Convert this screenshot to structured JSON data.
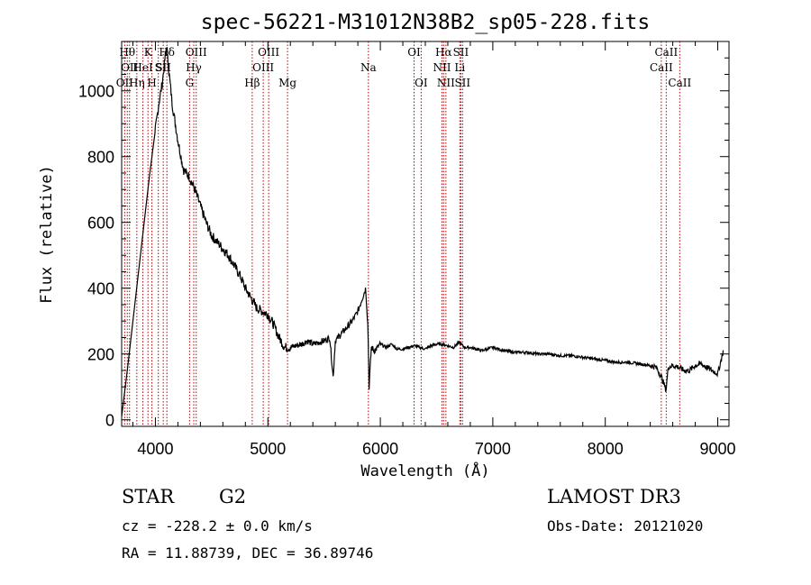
{
  "chart_data": {
    "type": "line",
    "title": "spec-56221-M31012N38B2_sp05-228.fits",
    "xlabel": "Wavelength (Å)",
    "ylabel": "Flux (relative)",
    "xlim": [
      3700,
      9100
    ],
    "ylim": [
      -20,
      1150
    ],
    "xticks": [
      4000,
      5000,
      6000,
      7000,
      8000,
      9000
    ],
    "yticks": [
      0,
      200,
      400,
      600,
      800,
      1000
    ],
    "series": [
      {
        "name": "flux",
        "color": "#000000",
        "x": [
          3700,
          3750,
          3800,
          3850,
          3900,
          3950,
          4000,
          4030,
          4060,
          4080,
          4100,
          4110,
          4120,
          4150,
          4200,
          4250,
          4300,
          4350,
          4400,
          4450,
          4500,
          4550,
          4600,
          4650,
          4700,
          4750,
          4800,
          4850,
          4900,
          4950,
          5000,
          5050,
          5100,
          5150,
          5200,
          5250,
          5300,
          5350,
          5400,
          5450,
          5500,
          5550,
          5580,
          5600,
          5650,
          5700,
          5750,
          5800,
          5850,
          5870,
          5890,
          5900,
          5920,
          5950,
          6000,
          6050,
          6100,
          6150,
          6200,
          6250,
          6300,
          6350,
          6400,
          6450,
          6500,
          6550,
          6600,
          6650,
          6700,
          6750,
          6800,
          6850,
          6900,
          6950,
          7000,
          7100,
          7200,
          7300,
          7400,
          7500,
          7600,
          7700,
          7800,
          7900,
          8000,
          8100,
          8200,
          8300,
          8400,
          8450,
          8500,
          8540,
          8560,
          8600,
          8650,
          8700,
          8750,
          8800,
          8850,
          8900,
          8950,
          9000,
          9050
        ],
        "y": [
          10,
          150,
          300,
          450,
          600,
          750,
          880,
          960,
          1020,
          1080,
          1140,
          1100,
          1060,
          960,
          850,
          760,
          740,
          700,
          650,
          600,
          560,
          540,
          520,
          500,
          470,
          440,
          400,
          370,
          340,
          330,
          320,
          290,
          250,
          220,
          220,
          225,
          230,
          240,
          230,
          235,
          240,
          250,
          130,
          240,
          260,
          280,
          300,
          330,
          380,
          400,
          280,
          100,
          220,
          210,
          230,
          220,
          230,
          215,
          215,
          220,
          225,
          220,
          215,
          225,
          230,
          230,
          225,
          220,
          235,
          220,
          220,
          215,
          210,
          215,
          220,
          210,
          205,
          205,
          200,
          200,
          195,
          195,
          190,
          185,
          180,
          175,
          175,
          170,
          165,
          160,
          130,
          90,
          160,
          165,
          160,
          150,
          150,
          165,
          170,
          160,
          150,
          140,
          210
        ]
      }
    ],
    "lines": [
      {
        "wave": 3727,
        "label": "OII",
        "row": 2
      },
      {
        "wave": 3750,
        "label": "Hθ",
        "row": 0
      },
      {
        "wave": 3770,
        "label": "OII",
        "row": 1
      },
      {
        "wave": 3835,
        "label": "Hη",
        "row": 2
      },
      {
        "wave": 3889,
        "label": "HeI",
        "row": 1
      },
      {
        "wave": 3934,
        "label": "K",
        "row": 0
      },
      {
        "wave": 3969,
        "label": "H",
        "row": 2
      },
      {
        "wave": 4026,
        "label": "S",
        "row": 1
      },
      {
        "wave": 4070,
        "label": "SII",
        "row": 1
      },
      {
        "wave": 4102,
        "label": "Hδ",
        "row": 0
      },
      {
        "wave": 4304,
        "label": "G",
        "row": 2
      },
      {
        "wave": 4341,
        "label": "Hγ",
        "row": 1
      },
      {
        "wave": 4363,
        "label": "OIII",
        "row": 0
      },
      {
        "wave": 4861,
        "label": "Hβ",
        "row": 2
      },
      {
        "wave": 4959,
        "label": "OIII",
        "row": 1
      },
      {
        "wave": 5007,
        "label": "OIII",
        "row": 0
      },
      {
        "wave": 5175,
        "label": "Mg",
        "row": 2
      },
      {
        "wave": 5894,
        "label": "Na",
        "row": 1
      },
      {
        "wave": 6300,
        "label": "OI",
        "row": 0
      },
      {
        "wave": 6363,
        "label": "OI",
        "row": 2
      },
      {
        "wave": 6548,
        "label": "NII",
        "row": 1
      },
      {
        "wave": 6563,
        "label": "Hα",
        "row": 0
      },
      {
        "wave": 6583,
        "label": "NII",
        "row": 2
      },
      {
        "wave": 6707,
        "label": "Li",
        "row": 1
      },
      {
        "wave": 6716,
        "label": "SII",
        "row": 0
      },
      {
        "wave": 6731,
        "label": "SII",
        "row": 2
      },
      {
        "wave": 8498,
        "label": "CaII",
        "row": 1
      },
      {
        "wave": 8542,
        "label": "CaII",
        "row": 0
      },
      {
        "wave": 8662,
        "label": "CaII",
        "row": 2
      }
    ]
  },
  "info": {
    "class": "STAR",
    "subclass": "G2",
    "survey": "LAMOST DR3",
    "cz": "cz = -228.2 ± 0.0 km/s",
    "obs_date": "Obs-Date: 20121020",
    "coords": "RA =  11.88739, DEC =  36.89746"
  },
  "colors": {
    "line_marker": "#b00000",
    "spectrum": "#000000"
  }
}
